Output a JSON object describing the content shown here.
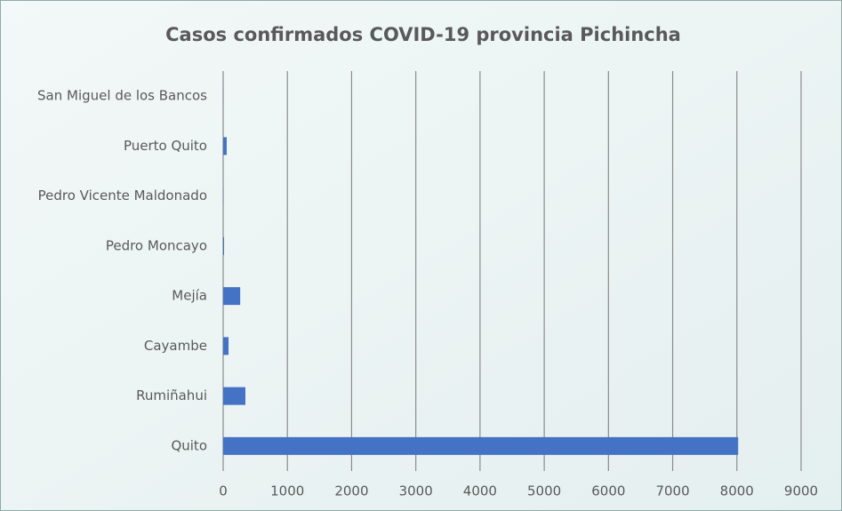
{
  "chart_data": {
    "type": "bar",
    "orientation": "horizontal",
    "title": "Casos confirmados COVID-19 provincia Pichincha",
    "categories": [
      "San Miguel de los Bancos",
      "Puerto Quito",
      "Pedro Vicente Maldonado",
      "Pedro Moncayo",
      "Mejía",
      "Cayambe",
      "Rumiñahui",
      "Quito"
    ],
    "values": [
      2,
      55,
      3,
      14,
      265,
      83,
      346,
      8020
    ],
    "color": "#4472c4",
    "xlim": [
      0,
      9000
    ],
    "xticks": [
      0,
      1000,
      2000,
      3000,
      4000,
      5000,
      6000,
      7000,
      8000,
      9000
    ],
    "grid": true
  }
}
